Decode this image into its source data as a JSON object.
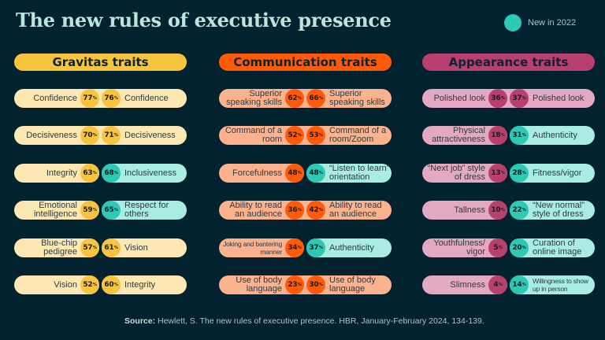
{
  "title": "The new rules of executive presence",
  "legend": {
    "label": "New in 2022",
    "color": "#2cc9b5"
  },
  "colors": {
    "background": "#03222f",
    "new_fill": "#a8ece2",
    "new_circle": "#2cc9b5",
    "gravitas_head": "#f8c440",
    "gravitas_fill": "#fde8b4",
    "gravitas_circle": "#f8c440",
    "communication_head": "#ff5a09",
    "communication_fill": "#fbb28f",
    "communication_circle": "#ff5a09",
    "appearance_head": "#b8406f",
    "appearance_fill": "#e3a9c2",
    "appearance_circle": "#b8406f"
  },
  "columns": [
    {
      "key": "gravitas",
      "header": "Gravitas traits",
      "rows": [
        {
          "left": {
            "label": "Confidence",
            "value": "77"
          },
          "right": {
            "label": "Confidence",
            "value": "76",
            "new": false
          },
          "joined": true
        },
        {
          "left": {
            "label": "Decisiveness",
            "value": "70"
          },
          "right": {
            "label": "Decisiveness",
            "value": "71",
            "new": false
          },
          "joined": true
        },
        {
          "left": {
            "label": "Integrity",
            "value": "63"
          },
          "right": {
            "label": "Inclusiveness",
            "value": "68",
            "new": true
          }
        },
        {
          "left": {
            "label": "Emotional intelligence",
            "value": "59"
          },
          "right": {
            "label": "Respect for others",
            "value": "65",
            "new": true
          }
        },
        {
          "left": {
            "label": "Blue-chip pedigree",
            "value": "57"
          },
          "right": {
            "label": "Vision",
            "value": "61",
            "new": false
          }
        },
        {
          "left": {
            "label": "Vision",
            "value": "52"
          },
          "right": {
            "label": "Integrity",
            "value": "60",
            "new": false
          }
        }
      ]
    },
    {
      "key": "communication",
      "header": "Communication traits",
      "rows": [
        {
          "left": {
            "label": "Superior speaking skills",
            "value": "62"
          },
          "right": {
            "label": "Superior speaking skills",
            "value": "66",
            "new": false
          },
          "joined": true
        },
        {
          "left": {
            "label": "Command of a room",
            "value": "52"
          },
          "right": {
            "label": "Command of a room/Zoom",
            "value": "53",
            "new": false
          },
          "joined": true
        },
        {
          "left": {
            "label": "Forcefulness",
            "value": "48"
          },
          "right": {
            "label": "“Listen to learn” orientation",
            "value": "48",
            "new": true
          }
        },
        {
          "left": {
            "label": "Ability to read an audience",
            "value": "36"
          },
          "right": {
            "label": "Ability to read an audience",
            "value": "42",
            "new": false
          },
          "joined": true
        },
        {
          "left": {
            "label": "Joking and bantering manner",
            "value": "34"
          },
          "right": {
            "label": "Authenticity",
            "value": "37",
            "new": true
          }
        },
        {
          "left": {
            "label": "Use of body language",
            "value": "23"
          },
          "right": {
            "label": "Use of body language",
            "value": "30",
            "new": false
          },
          "joined": true
        }
      ]
    },
    {
      "key": "appearance",
      "header": "Appearance traits",
      "rows": [
        {
          "left": {
            "label": "Polished look",
            "value": "36"
          },
          "right": {
            "label": "Polished look",
            "value": "37",
            "new": false
          },
          "joined": true
        },
        {
          "left": {
            "label": "Physical attractiveness",
            "value": "18"
          },
          "right": {
            "label": "Authenticity",
            "value": "31",
            "new": true
          }
        },
        {
          "left": {
            "label": "“Next job” style of dress",
            "value": "13"
          },
          "right": {
            "label": "Fitness/vigor",
            "value": "28",
            "new": true
          }
        },
        {
          "left": {
            "label": "Tallness",
            "value": "10"
          },
          "right": {
            "label": "“New normal” style of dress",
            "value": "22",
            "new": true
          }
        },
        {
          "left": {
            "label": "Youthfulness/ vigor",
            "value": "5"
          },
          "right": {
            "label": "Curation of online image",
            "value": "20",
            "new": true
          }
        },
        {
          "left": {
            "label": "Slimness",
            "value": "4"
          },
          "right": {
            "label": "Willingness to show up in person",
            "value": "14",
            "new": true
          }
        }
      ]
    }
  ],
  "source": {
    "prefix": "Source:",
    "text": " Hewlett, S. The new rules of executive presence. HBR, January-February 2024, 134-139."
  },
  "chart_data": {
    "type": "table",
    "title": "The new rules of executive presence",
    "legend": [
      "New in 2022"
    ],
    "unit": "%",
    "groups": [
      {
        "name": "Gravitas traits",
        "earlier": [
          [
            "Confidence",
            77
          ],
          [
            "Decisiveness",
            70
          ],
          [
            "Integrity",
            63
          ],
          [
            "Emotional intelligence",
            59
          ],
          [
            "Blue-chip pedigree",
            57
          ],
          [
            "Vision",
            52
          ]
        ],
        "2022": [
          [
            "Confidence",
            76,
            false
          ],
          [
            "Decisiveness",
            71,
            false
          ],
          [
            "Inclusiveness",
            68,
            true
          ],
          [
            "Respect for others",
            65,
            true
          ],
          [
            "Vision",
            61,
            false
          ],
          [
            "Integrity",
            60,
            false
          ]
        ]
      },
      {
        "name": "Communication traits",
        "earlier": [
          [
            "Superior speaking skills",
            62
          ],
          [
            "Command of a room",
            52
          ],
          [
            "Forcefulness",
            48
          ],
          [
            "Ability to read an audience",
            36
          ],
          [
            "Joking and bantering manner",
            34
          ],
          [
            "Use of body language",
            23
          ]
        ],
        "2022": [
          [
            "Superior speaking skills",
            66,
            false
          ],
          [
            "Command of a room/Zoom",
            53,
            false
          ],
          [
            "“Listen to learn” orientation",
            48,
            true
          ],
          [
            "Ability to read an audience",
            42,
            false
          ],
          [
            "Authenticity",
            37,
            true
          ],
          [
            "Use of body language",
            30,
            false
          ]
        ]
      },
      {
        "name": "Appearance traits",
        "earlier": [
          [
            "Polished look",
            36
          ],
          [
            "Physical attractiveness",
            18
          ],
          [
            "“Next job” style of dress",
            13
          ],
          [
            "Tallness",
            10
          ],
          [
            "Youthfulness/vigor",
            5
          ],
          [
            "Slimness",
            4
          ]
        ],
        "2022": [
          [
            "Polished look",
            37,
            false
          ],
          [
            "Authenticity",
            31,
            true
          ],
          [
            "Fitness/vigor",
            28,
            true
          ],
          [
            "“New normal” style of dress",
            22,
            true
          ],
          [
            "Curation of online image",
            20,
            true
          ],
          [
            "Willingness to show up in person",
            14,
            true
          ]
        ]
      }
    ],
    "source": "Hewlett, S. The new rules of executive presence. HBR, January-February 2024, 134-139."
  }
}
